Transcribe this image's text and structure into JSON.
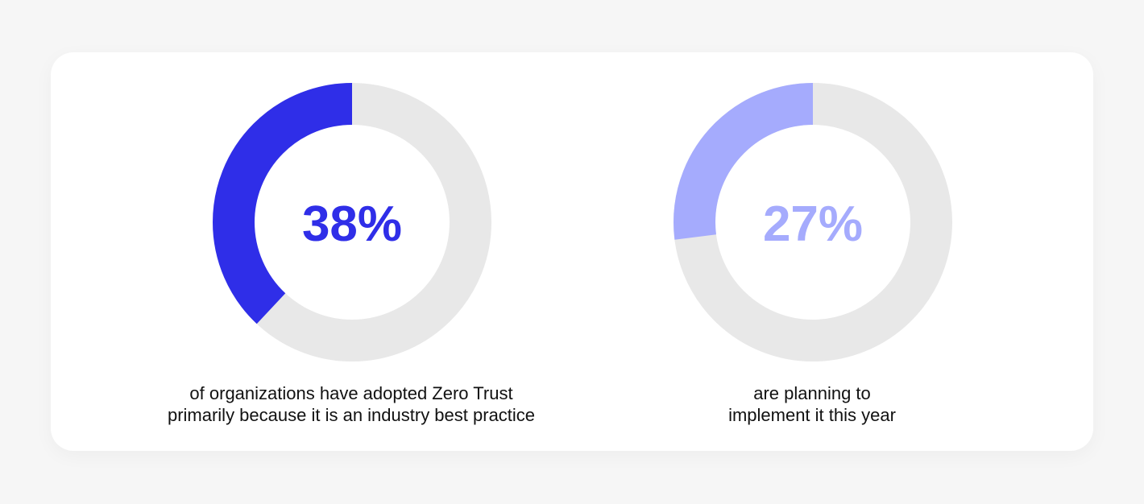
{
  "chart_data": [
    {
      "type": "pie",
      "variant": "donut",
      "value": 38,
      "total": 100,
      "center_label": "38%",
      "caption": [
        "of organizations have adopted Zero Trust",
        "primarily because it is an industry best practice"
      ],
      "colors": {
        "filled": "#2f2ee8",
        "remainder": "#e8e8e8",
        "label": "#2f2ee8"
      }
    },
    {
      "type": "pie",
      "variant": "donut",
      "value": 27,
      "total": 100,
      "center_label": "27%",
      "caption": [
        "are planning to",
        "implement it this year"
      ],
      "colors": {
        "filled": "#a5abfd",
        "remainder": "#e8e8e8",
        "label": "#a5abfd"
      }
    }
  ]
}
